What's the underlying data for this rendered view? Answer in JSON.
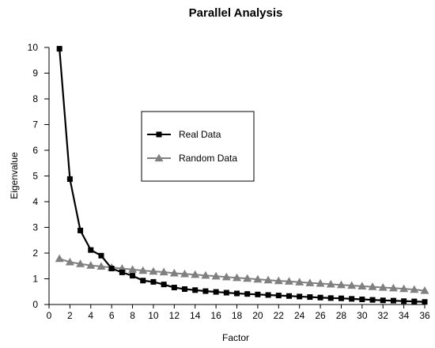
{
  "chart_data": {
    "type": "line",
    "title": "Parallel Analysis",
    "xlabel": "Factor",
    "ylabel": "Eigenvalue",
    "xlim": [
      0,
      36
    ],
    "ylim": [
      0,
      10
    ],
    "xticks": [
      "0",
      "2",
      "4",
      "6",
      "8",
      "10",
      "12",
      "14",
      "16",
      "18",
      "20",
      "22",
      "24",
      "26",
      "28",
      "30",
      "32",
      "34",
      "36"
    ],
    "yticks": [
      "0",
      "1",
      "2",
      "3",
      "4",
      "5",
      "6",
      "7",
      "8",
      "9",
      "10"
    ],
    "grid": false,
    "legend_position": "center",
    "x": [
      1,
      2,
      3,
      4,
      5,
      6,
      7,
      8,
      9,
      10,
      11,
      12,
      13,
      14,
      15,
      16,
      17,
      18,
      19,
      20,
      21,
      22,
      23,
      24,
      25,
      26,
      27,
      28,
      29,
      30,
      31,
      32,
      33,
      34,
      35,
      36
    ],
    "series": [
      {
        "name": "Real Data",
        "color": "#000000",
        "marker": "square",
        "values": [
          9.95,
          4.88,
          2.88,
          2.12,
          1.9,
          1.4,
          1.25,
          1.12,
          0.93,
          0.88,
          0.78,
          0.66,
          0.6,
          0.56,
          0.52,
          0.49,
          0.46,
          0.43,
          0.41,
          0.39,
          0.37,
          0.35,
          0.33,
          0.31,
          0.29,
          0.27,
          0.25,
          0.24,
          0.22,
          0.2,
          0.18,
          0.16,
          0.15,
          0.13,
          0.12,
          0.1
        ]
      },
      {
        "name": "Random Data",
        "color": "#808080",
        "marker": "triangle",
        "values": [
          1.78,
          1.65,
          1.58,
          1.52,
          1.48,
          1.44,
          1.4,
          1.36,
          1.32,
          1.29,
          1.26,
          1.22,
          1.19,
          1.16,
          1.13,
          1.1,
          1.07,
          1.04,
          1.01,
          0.98,
          0.95,
          0.92,
          0.9,
          0.87,
          0.84,
          0.82,
          0.79,
          0.76,
          0.74,
          0.71,
          0.69,
          0.66,
          0.64,
          0.61,
          0.58,
          0.54
        ]
      }
    ]
  }
}
